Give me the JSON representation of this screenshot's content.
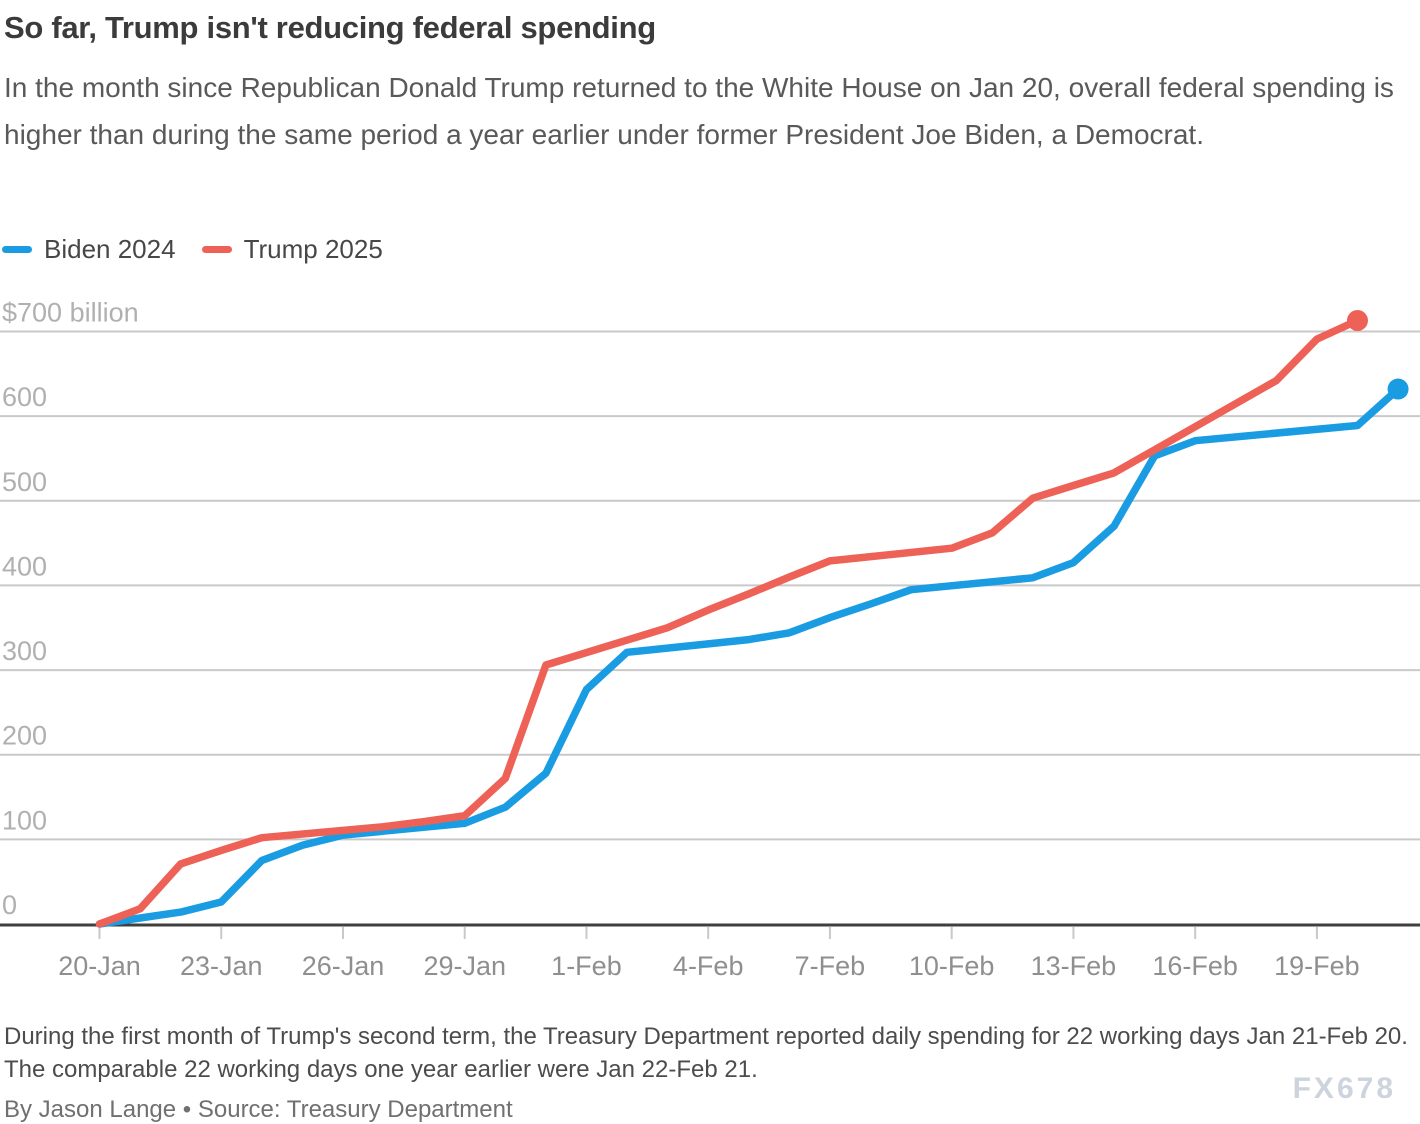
{
  "header": {
    "title": "So far, Trump isn't reducing federal spending",
    "subtitle": "In the month since Republican Donald Trump returned to the White House on Jan 20, overall federal spending is higher than during the same period a year earlier under former President Joe Biden, a Democrat."
  },
  "legend": {
    "items": [
      {
        "label": "Biden 2024",
        "color": "#1a9ce3"
      },
      {
        "label": "Trump 2025",
        "color": "#ee6156"
      }
    ]
  },
  "chart_data": {
    "type": "line",
    "title": "So far, Trump isn't reducing federal spending",
    "unit": "billions of U.S. dollars (cumulative spending)",
    "ylim": [
      0,
      700
    ],
    "grid": "horizontal",
    "legend_position": "top-left",
    "colors": {
      "biden": "#1a9ce3",
      "trump": "#ee6156",
      "gridline": "#c9c9c9",
      "axis": "#3f3f3f"
    },
    "y_ticks": [
      {
        "value": 700,
        "label": "$700 billion"
      },
      {
        "value": 600,
        "label": "600"
      },
      {
        "value": 500,
        "label": "500"
      },
      {
        "value": 400,
        "label": "400"
      },
      {
        "value": 300,
        "label": "300"
      },
      {
        "value": 200,
        "label": "200"
      },
      {
        "value": 100,
        "label": "100"
      },
      {
        "value": 0,
        "label": "0"
      }
    ],
    "x_ticks": [
      "20-Jan",
      "23-Jan",
      "26-Jan",
      "29-Jan",
      "1-Feb",
      "4-Feb",
      "7-Feb",
      "10-Feb",
      "13-Feb",
      "16-Feb",
      "19-Feb"
    ],
    "series": [
      {
        "name": "Biden 2024",
        "color": "#1a9ce3",
        "end_dot": true,
        "points": [
          {
            "date": "20-Jan",
            "value": 0
          },
          {
            "date": "22-Jan",
            "value": 14
          },
          {
            "date": "23-Jan",
            "value": 26
          },
          {
            "date": "24-Jan",
            "value": 75
          },
          {
            "date": "25-Jan",
            "value": 93
          },
          {
            "date": "26-Jan",
            "value": 105
          },
          {
            "date": "29-Jan",
            "value": 119
          },
          {
            "date": "30-Jan",
            "value": 138
          },
          {
            "date": "31-Jan",
            "value": 178
          },
          {
            "date": "1-Feb",
            "value": 277
          },
          {
            "date": "2-Feb",
            "value": 321
          },
          {
            "date": "5-Feb",
            "value": 336
          },
          {
            "date": "6-Feb",
            "value": 344
          },
          {
            "date": "7-Feb",
            "value": 362
          },
          {
            "date": "8-Feb",
            "value": 378
          },
          {
            "date": "9-Feb",
            "value": 395
          },
          {
            "date": "12-Feb",
            "value": 409
          },
          {
            "date": "13-Feb",
            "value": 427
          },
          {
            "date": "14-Feb",
            "value": 470
          },
          {
            "date": "15-Feb",
            "value": 553
          },
          {
            "date": "16-Feb",
            "value": 571
          },
          {
            "date": "20-Feb",
            "value": 589
          },
          {
            "date": "21-Feb",
            "value": 632
          }
        ]
      },
      {
        "name": "Trump 2025",
        "color": "#ee6156",
        "end_dot": true,
        "points": [
          {
            "date": "20-Jan",
            "value": 0
          },
          {
            "date": "21-Jan",
            "value": 18
          },
          {
            "date": "22-Jan",
            "value": 71
          },
          {
            "date": "23-Jan",
            "value": 87
          },
          {
            "date": "24-Jan",
            "value": 102
          },
          {
            "date": "27-Jan",
            "value": 115
          },
          {
            "date": "28-Jan",
            "value": 121
          },
          {
            "date": "29-Jan",
            "value": 128
          },
          {
            "date": "30-Jan",
            "value": 172
          },
          {
            "date": "31-Jan",
            "value": 306
          },
          {
            "date": "3-Feb",
            "value": 350
          },
          {
            "date": "4-Feb",
            "value": 371
          },
          {
            "date": "5-Feb",
            "value": 390
          },
          {
            "date": "6-Feb",
            "value": 410
          },
          {
            "date": "7-Feb",
            "value": 429
          },
          {
            "date": "10-Feb",
            "value": 444
          },
          {
            "date": "11-Feb",
            "value": 462
          },
          {
            "date": "12-Feb",
            "value": 503
          },
          {
            "date": "13-Feb",
            "value": 518
          },
          {
            "date": "14-Feb",
            "value": 533
          },
          {
            "date": "18-Feb",
            "value": 642
          },
          {
            "date": "19-Feb",
            "value": 691
          },
          {
            "date": "20-Feb",
            "value": 713
          }
        ]
      }
    ]
  },
  "footer": {
    "note": "During the first month of Trump's second term, the Treasury Department reported daily spending for 22 working days Jan 21-Feb 20. The comparable 22 working days one year earlier were Jan 22-Feb 21.",
    "byline": "By Jason Lange • Source: Treasury Department",
    "watermark": "FX678"
  }
}
